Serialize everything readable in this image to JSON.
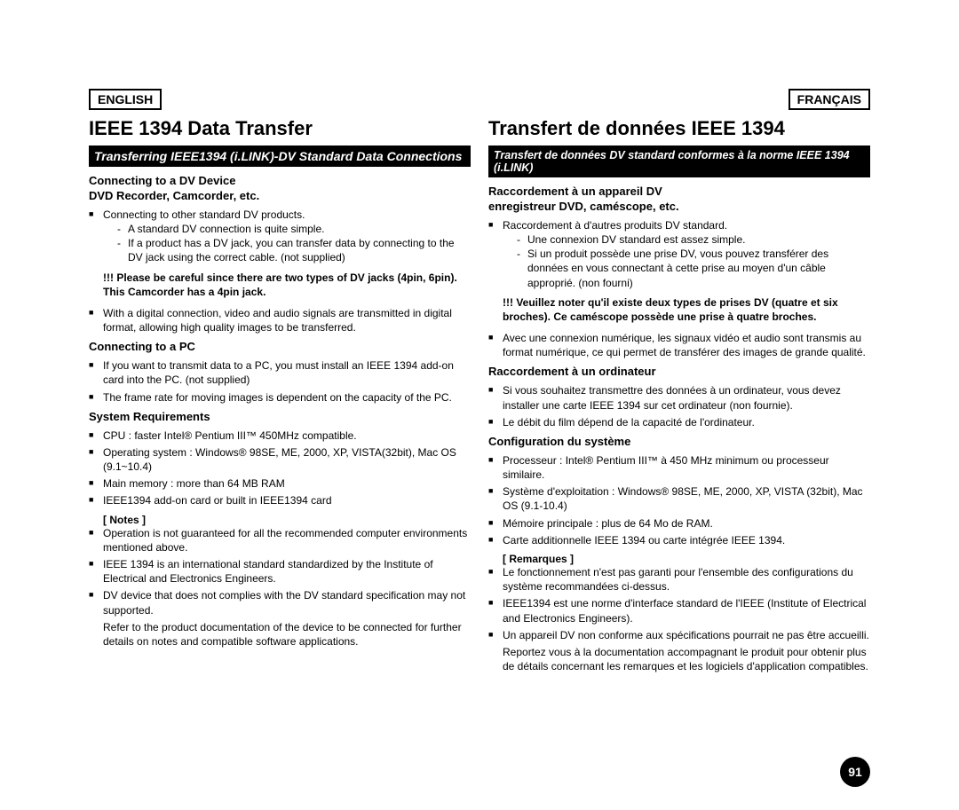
{
  "page_number": "91",
  "english": {
    "lang_label": "ENGLISH",
    "main_title": "IEEE 1394 Data Transfer",
    "banner": "Transferring IEEE1394 (i.LINK)-DV Standard Data Connections",
    "sub1_line1": "Connecting to a DV Device",
    "sub1_line2": "DVD Recorder, Camcorder, etc.",
    "b1": "Connecting to other standard DV products.",
    "b1d1": "A standard DV connection is quite simple.",
    "b1d2": "If a product has a DV jack, you can transfer data by connecting to the DV jack using the correct cable. (not supplied)",
    "warn1": "!!! Please be careful since there are two types of DV jacks (4pin, 6pin). This Camcorder has a 4pin jack.",
    "b2": "With a digital connection, video and audio signals are transmitted in digital format, allowing high quality images to be transferred.",
    "sub2": "Connecting to a PC",
    "b3": "If you want to transmit data to a PC, you must install an IEEE 1394 add-on card into the PC. (not supplied)",
    "b4": "The frame rate for moving images is dependent on the capacity of the PC.",
    "sub3": "System Requirements",
    "b5": "CPU : faster Intel® Pentium III™ 450MHz compatible.",
    "b6": "Operating system : Windows® 98SE, ME, 2000, XP, VISTA(32bit), Mac OS (9.1~10.4)",
    "b7": "Main memory : more than 64 MB RAM",
    "b8": "IEEE1394 add-on card or built in IEEE1394 card",
    "notes_label": "[ Notes ]",
    "n1": "Operation is not guaranteed for all the recommended computer environments mentioned above.",
    "n2": "IEEE 1394 is an international standard standardized by the Institute of Electrical and Electronics Engineers.",
    "n3": "DV device that does not complies with the DV standard specification may not supported.",
    "ref": "Refer to the product documentation of the device to be connected for further details on notes and compatible software applications."
  },
  "french": {
    "lang_label": "FRANÇAIS",
    "main_title": "Transfert de données IEEE 1394",
    "banner": "Transfert de données DV standard conformes à la norme IEEE 1394 (i.LINK)",
    "sub1_line1": "Raccordement à un appareil DV",
    "sub1_line2": "enregistreur DVD, caméscope, etc.",
    "b1": "Raccordement à d'autres produits DV standard.",
    "b1d1": "Une connexion DV standard est assez simple.",
    "b1d2": "Si un produit possède une prise DV, vous pouvez transférer des données en vous connectant à cette prise au moyen d'un câble approprié. (non fourni)",
    "warn1": "!!! Veuillez noter qu'il existe deux types de prises DV (quatre et six broches). Ce caméscope possède une prise à quatre broches.",
    "b2": "Avec une connexion numérique, les signaux vidéo et audio sont transmis au format numérique, ce qui permet de transférer des images de grande qualité.",
    "sub2": "Raccordement à un ordinateur",
    "b3": "Si vous souhaitez transmettre des données à un ordinateur, vous devez installer une carte IEEE 1394 sur cet ordinateur (non fournie).",
    "b4": "Le débit du film dépend de la capacité de l'ordinateur.",
    "sub3": "Configuration du système",
    "b5": "Processeur : Intel® Pentium III™ à 450 MHz minimum ou processeur similaire.",
    "b6": "Système d'exploitation : Windows® 98SE, ME, 2000, XP, VISTA (32bit), Mac OS (9.1-10.4)",
    "b7": "Mémoire principale : plus de 64 Mo de RAM.",
    "b8": "Carte additionnelle IEEE 1394 ou carte intégrée IEEE 1394.",
    "notes_label": "[ Remarques ]",
    "n1": "Le fonctionnement n'est pas garanti pour l'ensemble des configurations du système recommandées ci-dessus.",
    "n2": "IEEE1394 est une norme d'interface standard de l'IEEE (Institute of Electrical and Electronics Engineers).",
    "n3": "Un appareil DV non conforme aux spécifications pourrait ne pas être accueilli.",
    "ref": "Reportez vous à la documentation accompagnant le produit pour obtenir plus de détails concernant les remarques et les logiciels d'application compatibles."
  }
}
